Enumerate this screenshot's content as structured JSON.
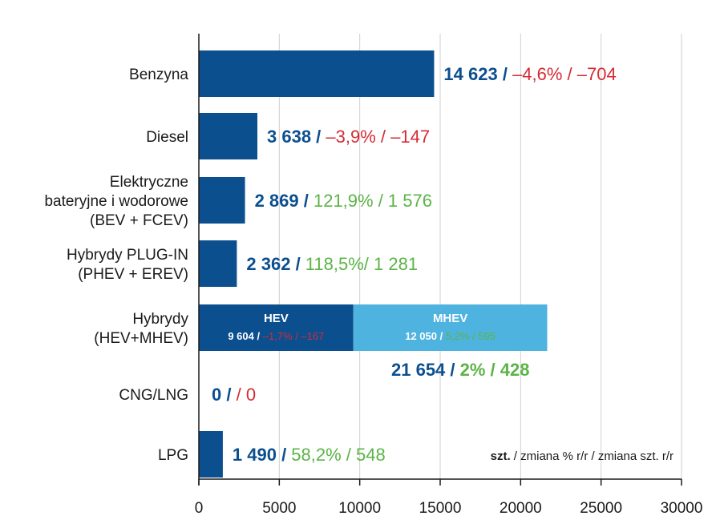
{
  "chart_data": {
    "type": "bar",
    "orientation": "horizontal",
    "xlim": [
      0,
      30000
    ],
    "ticks": [
      0,
      5000,
      10000,
      15000,
      20000,
      25000,
      30000
    ],
    "tick_labels": [
      "0",
      "5000",
      "10000",
      "15000",
      "20000",
      "25000",
      "30000"
    ],
    "grid": true,
    "colors": {
      "bar": "#0b4f8f",
      "mhev": "#4fb3e0",
      "axis": "#1a1a1a",
      "grid": "#cfcfcf",
      "value": "#0b4f8f",
      "negative": "#d62b33",
      "positive": "#5bb446"
    },
    "categories": [
      {
        "label_lines": [
          "Benzyna"
        ],
        "value": 14623,
        "value_text": "14 623",
        "sep": " / ",
        "pct": "–4,6% / –704",
        "pct_sign": "negative"
      },
      {
        "label_lines": [
          "Diesel"
        ],
        "value": 3638,
        "value_text": "3 638",
        "sep": " / ",
        "pct": "–3,9% / –147",
        "pct_sign": "negative"
      },
      {
        "label_lines": [
          "Elektryczne",
          "bateryjne i wodorowe",
          "(BEV + FCEV)"
        ],
        "value": 2869,
        "value_text": "2 869",
        "sep": " / ",
        "pct": "121,9% / 1 576",
        "pct_sign": "positive"
      },
      {
        "label_lines": [
          "Hybrydy PLUG-IN",
          "(PHEV + EREV)"
        ],
        "value": 2362,
        "value_text": "2 362",
        "sep": " / ",
        "pct": "118,5%/ 1 281",
        "pct_sign": "positive"
      },
      {
        "label_lines": [
          "Hybrydy",
          "(HEV+MHEV)"
        ],
        "value": 21654,
        "value_text": "21 654",
        "sep": " / ",
        "pct": "2% / 428",
        "pct_sign": "positive",
        "segments": [
          {
            "name": "HEV",
            "value": 9604,
            "value_text": "9 604",
            "sep": " / ",
            "change": "–1,7% / –167",
            "sign": "negative"
          },
          {
            "name": "MHEV",
            "value": 12050,
            "value_text": "12 050",
            "sep": " / ",
            "change": "5,2% / 595",
            "sign": "positive"
          }
        ]
      },
      {
        "label_lines": [
          "CNG/LNG"
        ],
        "value": 0,
        "value_text": "0",
        "sep": " /  ",
        "pct": "/ 0",
        "pct_sign": "negative"
      },
      {
        "label_lines": [
          "LPG"
        ],
        "value": 1490,
        "value_text": "1 490",
        "sep": " / ",
        "pct": "58,2% / 548",
        "pct_sign": "positive"
      }
    ],
    "legend": {
      "bold": "szt.",
      "rest": " / zmiana % r/r / zmiana szt. r/r"
    }
  }
}
